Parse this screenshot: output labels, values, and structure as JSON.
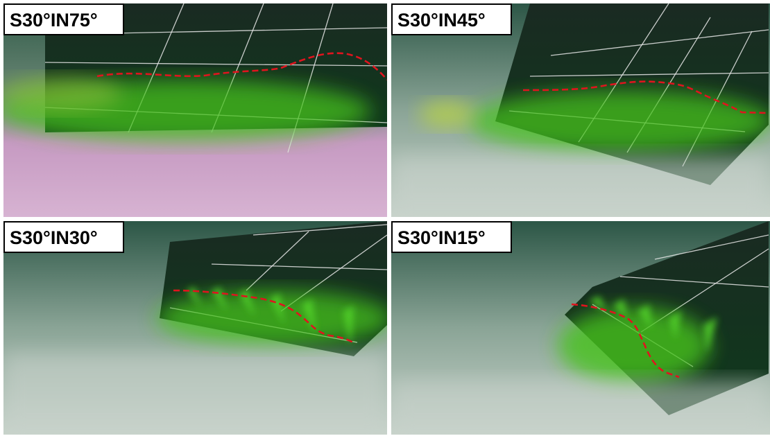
{
  "panels": [
    {
      "label": "S30°IN75°"
    },
    {
      "label": "S30°IN45°"
    },
    {
      "label": "S30°IN30°"
    },
    {
      "label": "S30°IN15°"
    }
  ]
}
